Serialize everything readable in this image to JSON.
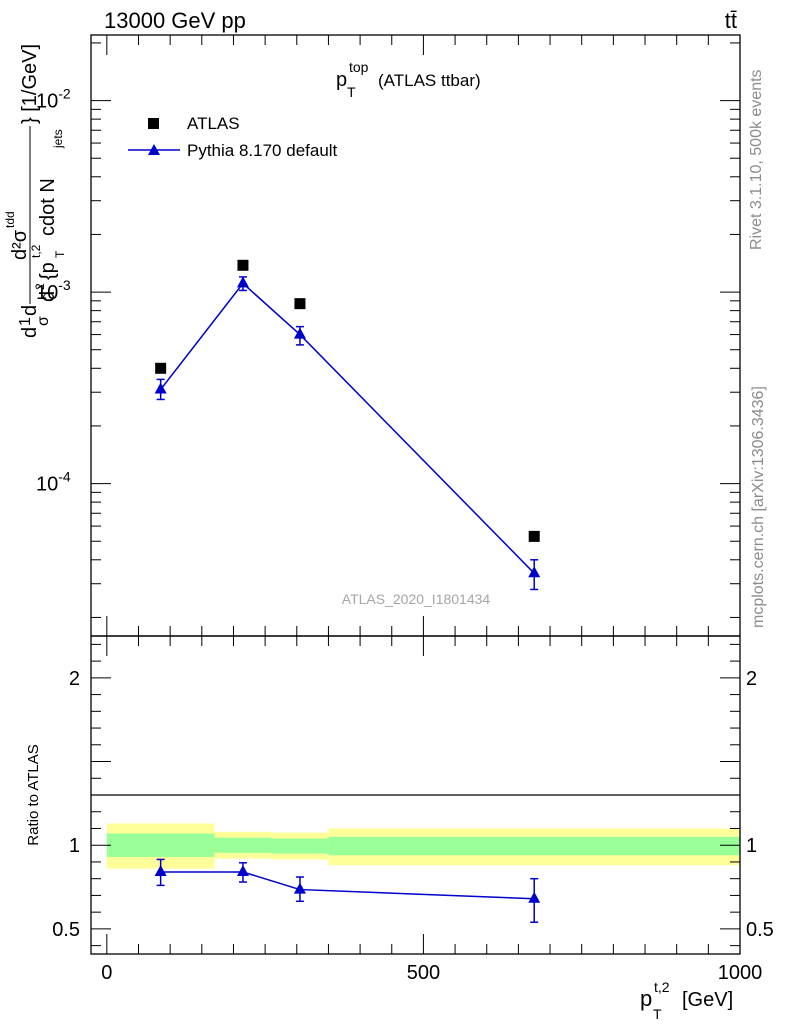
{
  "header": {
    "energy_label": "13000 GeV pp",
    "process_label": "tt̄"
  },
  "side_labels": {
    "rivet": "Rivet 3.1.10,  500k events",
    "mcplots": "mcplots.cern.ch [arXiv:1306.3436]"
  },
  "colors": {
    "mc": "#0000cc",
    "data": "#000000",
    "band_inner": "#99ff99",
    "band_outer": "#ffff99"
  },
  "chart_data": [
    {
      "type": "scatter",
      "panel": "main",
      "title": "p_T^top (ATLAS ttbar)",
      "title_parts": {
        "base": "p",
        "sub": "T",
        "sup": "top",
        "rest": "(ATLAS ttbar)"
      },
      "watermark": "ATLAS_2020_I1801434",
      "ylabel": "d1dσd d²σ^tdd² {p_T^t,2 cdot N_jets} [1/GeV]",
      "ylabel_parts": {
        "frac1": "1",
        "sigma": "σ",
        "d": "d",
        "numer": "d²σ",
        "numer_sup": "tdd",
        "denom_pre": "d",
        "denom_sq": "2",
        "denom_mid": "{p",
        "denom_sub": "T",
        "denom_sup": "t,2",
        "denom_tail": "cdot N",
        "denom_tail_sub": "jets",
        "unit": "} [1/GeV]"
      },
      "yscale": "log",
      "ylim": [
        1.6e-05,
        0.022
      ],
      "xlim": [
        -25,
        1000
      ],
      "y_ticks": [
        {
          "base": "10",
          "exp": "-2",
          "value": 0.01
        },
        {
          "base": "10",
          "exp": "-3",
          "value": 0.001
        },
        {
          "base": "10",
          "exp": "-4",
          "value": 0.0001
        }
      ],
      "legend_position": "top-left",
      "series": [
        {
          "name": "ATLAS",
          "marker": "square",
          "x": [
            85,
            215,
            305,
            675
          ],
          "y": [
            0.0004,
            0.00138,
            0.00087,
            5.3e-05
          ]
        },
        {
          "name": "Pythia 8.170 default",
          "marker": "triangle",
          "line": true,
          "x": [
            85,
            215,
            305,
            675
          ],
          "y": [
            0.00031,
            0.00111,
            0.0006,
            3.4e-05
          ],
          "yerr_lo": [
            0.000275,
            0.00102,
            0.00053,
            2.8e-05
          ],
          "yerr_hi": [
            0.00035,
            0.0012,
            0.00066,
            4e-05
          ]
        }
      ]
    },
    {
      "type": "scatter",
      "panel": "ratio",
      "ylabel": "Ratio to ATLAS",
      "xlabel": "p_T^t,2 [GeV]",
      "xlabel_parts": {
        "base": "p",
        "sub": "T",
        "sup": "t,2",
        "unit": "[GeV]"
      },
      "ylim": [
        0.35,
        2.25
      ],
      "xlim": [
        -25,
        1000
      ],
      "x_ticks": [
        {
          "label": "0",
          "value": 0
        },
        {
          "label": "500",
          "value": 500
        },
        {
          "label": "1000",
          "value": 1000
        }
      ],
      "y_ticks": [
        {
          "label": "0.5",
          "value": 0.5
        },
        {
          "label": "1",
          "value": 1
        },
        {
          "label": "2",
          "value": 2
        }
      ],
      "bands": [
        {
          "x0": 0,
          "x1": 170,
          "inner": [
            0.93,
            1.07
          ],
          "outer": [
            0.86,
            1.13
          ]
        },
        {
          "x0": 170,
          "x1": 260,
          "inner": [
            0.955,
            1.045
          ],
          "outer": [
            0.92,
            1.08
          ]
        },
        {
          "x0": 260,
          "x1": 350,
          "inner": [
            0.95,
            1.04
          ],
          "outer": [
            0.915,
            1.075
          ]
        },
        {
          "x0": 350,
          "x1": 1000,
          "inner": [
            0.94,
            1.05
          ],
          "outer": [
            0.88,
            1.1
          ]
        }
      ],
      "series": [
        {
          "name": "Pythia 8.170 default",
          "marker": "triangle",
          "x": [
            85,
            215,
            305,
            675
          ],
          "y": [
            0.84,
            0.84,
            0.735,
            0.68
          ],
          "yerr_lo": [
            0.76,
            0.78,
            0.665,
            0.54
          ],
          "yerr_hi": [
            0.915,
            0.895,
            0.81,
            0.8
          ]
        }
      ]
    }
  ]
}
